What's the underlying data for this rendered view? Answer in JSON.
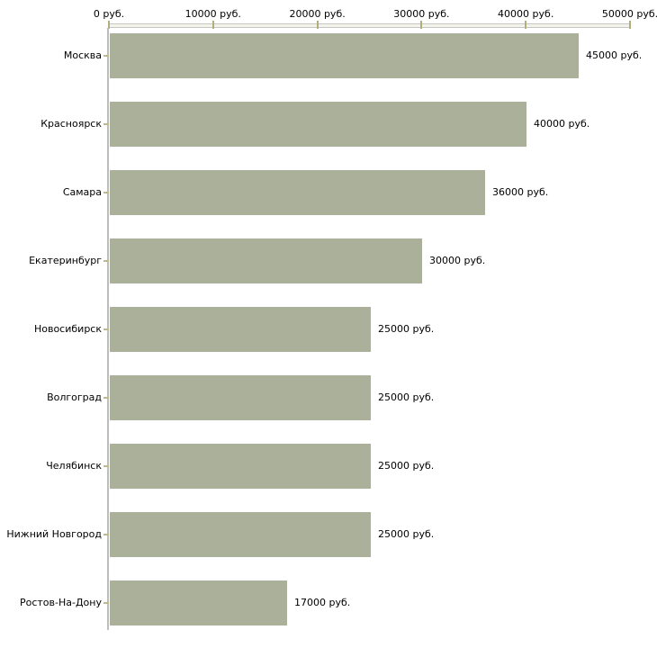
{
  "chart_data": {
    "type": "bar",
    "orientation": "horizontal",
    "title": "",
    "xlabel": "",
    "ylabel": "",
    "unit": "руб.",
    "xlim": [
      0,
      50000
    ],
    "grid": false,
    "legend": false,
    "axis_position": "top",
    "categories": [
      "Москва",
      "Красноярск",
      "Самара",
      "Екатеринбург",
      "Новосибирск",
      "Волгоград",
      "Челябинск",
      "Нижний Новгород",
      "Ростов-На-Дону"
    ],
    "values": [
      45000,
      40000,
      36000,
      30000,
      25000,
      25000,
      25000,
      25000,
      17000
    ],
    "value_labels": [
      "45000 руб.",
      "40000 руб.",
      "36000 руб.",
      "30000 руб.",
      "25000 руб.",
      "25000 руб.",
      "25000 руб.",
      "25000 руб.",
      "17000 руб."
    ],
    "x_ticks": [
      0,
      10000,
      20000,
      30000,
      40000,
      50000
    ],
    "x_tick_labels": [
      "0 руб.",
      "10000 руб.",
      "20000 руб.",
      "30000 руб.",
      "40000 руб.",
      "50000 руб."
    ]
  },
  "colors": {
    "bar": "#aab099",
    "axis_line": "#bdbdbd",
    "axis_band_fill": "#f5f4ea",
    "axis_band_border": "#c6c6c6",
    "tick": "#b0ad7f",
    "row_tick": "#bcb98f",
    "text": "#000000",
    "background": "#ffffff"
  }
}
